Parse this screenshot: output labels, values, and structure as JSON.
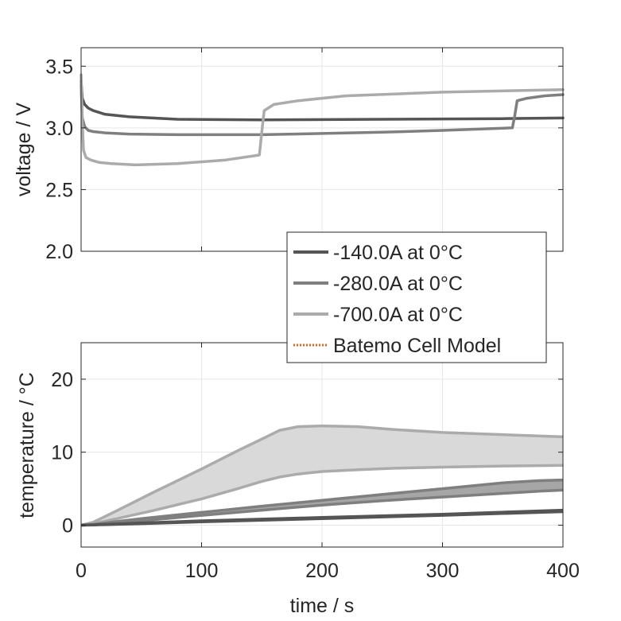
{
  "chart_data": [
    {
      "type": "line",
      "ylabel": "voltage / V",
      "xlim": [
        0,
        400
      ],
      "ylim": [
        2.0,
        3.65
      ],
      "yticks": [
        2.0,
        2.5,
        3.0,
        3.5
      ],
      "ytick_labels": [
        "2.0",
        "2.5",
        "3.0",
        "3.5"
      ],
      "xticks": [
        0,
        100,
        200,
        300,
        400
      ],
      "grid": true,
      "series": [
        {
          "name": "-140.0A at 0°C",
          "color": "#555555",
          "x": [
            0,
            1,
            3,
            6,
            10,
            20,
            40,
            80,
            150,
            250,
            350,
            400
          ],
          "y": [
            3.38,
            3.24,
            3.19,
            3.16,
            3.14,
            3.11,
            3.09,
            3.07,
            3.065,
            3.07,
            3.075,
            3.08
          ]
        },
        {
          "name": "-280.0A at 0°C",
          "color": "#7f7f7f",
          "x": [
            0,
            1,
            3,
            6,
            10,
            20,
            40,
            80,
            150,
            250,
            300,
            358,
            360,
            362,
            370,
            385,
            400
          ],
          "y": [
            3.35,
            3.08,
            3.01,
            2.98,
            2.97,
            2.96,
            2.95,
            2.945,
            2.945,
            2.965,
            2.98,
            3.0,
            3.1,
            3.22,
            3.24,
            3.26,
            3.27
          ]
        },
        {
          "name": "-700.0A at 0°C",
          "color": "#ababab",
          "x": [
            0,
            1,
            2,
            4,
            8,
            15,
            25,
            45,
            80,
            120,
            148,
            150,
            152,
            160,
            180,
            220,
            300,
            400
          ],
          "y": [
            3.43,
            3.05,
            2.82,
            2.76,
            2.74,
            2.72,
            2.71,
            2.7,
            2.71,
            2.74,
            2.78,
            2.97,
            3.14,
            3.19,
            3.22,
            3.26,
            3.29,
            3.31
          ]
        }
      ]
    },
    {
      "type": "area",
      "ylabel": "temperature / °C",
      "xlabel": "time / s",
      "xlim": [
        0,
        400
      ],
      "ylim": [
        -3,
        25
      ],
      "yticks": [
        0,
        10,
        20
      ],
      "ytick_labels": [
        "0",
        "10",
        "20"
      ],
      "xticks": [
        0,
        100,
        200,
        300,
        400
      ],
      "xtick_labels": [
        "0",
        "100",
        "200",
        "300",
        "400"
      ],
      "grid": true,
      "bands": [
        {
          "name": "-140.0A at 0°C",
          "color": "#555555",
          "fill": "#6e6e6e",
          "x": [
            0,
            10,
            50,
            100,
            200,
            300,
            400
          ],
          "upper": [
            0,
            0.05,
            0.3,
            0.6,
            1.05,
            1.5,
            2.05
          ],
          "lower": [
            0,
            0.03,
            0.2,
            0.45,
            0.9,
            1.35,
            1.85
          ]
        },
        {
          "name": "-280.0A at 0°C",
          "color": "#7f7f7f",
          "fill": "#a6a6a6",
          "x": [
            0,
            10,
            50,
            100,
            150,
            200,
            250,
            300,
            350,
            380,
            400
          ],
          "upper": [
            0,
            0.1,
            0.9,
            1.75,
            2.6,
            3.4,
            4.2,
            5.0,
            5.8,
            6.1,
            6.2
          ],
          "lower": [
            0,
            0.08,
            0.6,
            1.35,
            2.05,
            2.75,
            3.35,
            3.85,
            4.35,
            4.65,
            4.8
          ]
        },
        {
          "name": "-700.0A at 0°C",
          "color": "#ababab",
          "fill": "#d9d9d9",
          "x": [
            0,
            10,
            30,
            60,
            100,
            130,
            150,
            165,
            180,
            200,
            230,
            260,
            300,
            350,
            400
          ],
          "upper": [
            0,
            0.4,
            2.0,
            4.5,
            7.7,
            10.2,
            11.8,
            13.0,
            13.5,
            13.6,
            13.5,
            13.1,
            12.7,
            12.4,
            12.1
          ],
          "lower": [
            0,
            0.2,
            0.9,
            2.0,
            3.6,
            5.0,
            6.0,
            6.6,
            7.0,
            7.35,
            7.6,
            7.8,
            7.95,
            8.1,
            8.2
          ]
        }
      ]
    }
  ],
  "legend": {
    "placement": "between-panels-right",
    "entries": [
      {
        "label": "-140.0A at 0°C",
        "color": "#555555",
        "style": "solid"
      },
      {
        "label": "-280.0A at 0°C",
        "color": "#7f7f7f",
        "style": "solid"
      },
      {
        "label": "-700.0A at 0°C",
        "color": "#ababab",
        "style": "solid"
      },
      {
        "label": "Batemo Cell Model",
        "color": "#e8651a",
        "style": "dotted"
      }
    ]
  }
}
